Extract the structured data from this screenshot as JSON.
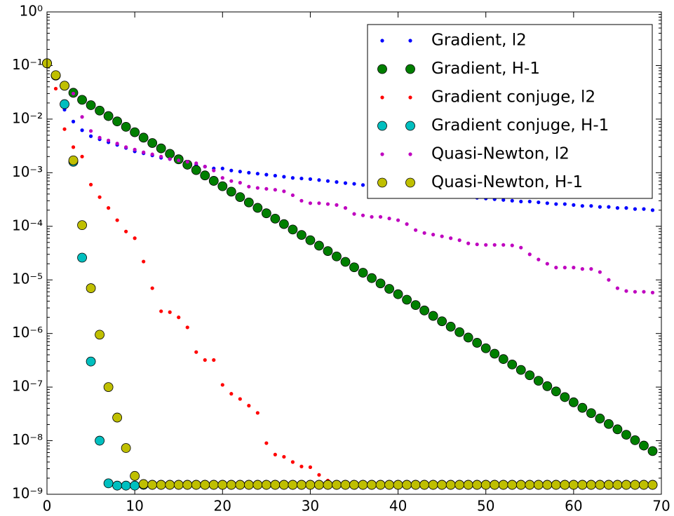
{
  "chart_data": {
    "type": "scatter",
    "yscale": "log",
    "legend": "upper right",
    "x": [
      0,
      1,
      2,
      3,
      4,
      5,
      6,
      7,
      8,
      9,
      10,
      11,
      12,
      13,
      14,
      15,
      16,
      17,
      18,
      19,
      20,
      21,
      22,
      23,
      24,
      25,
      26,
      27,
      28,
      29,
      30,
      31,
      32,
      33,
      34,
      35,
      36,
      37,
      38,
      39,
      40,
      41,
      42,
      43,
      44,
      45,
      46,
      47,
      48,
      49,
      50,
      51,
      52,
      53,
      54,
      55,
      56,
      57,
      58,
      59,
      60,
      61,
      62,
      63,
      64,
      65,
      66,
      67,
      68,
      69
    ],
    "xlim": [
      0,
      70
    ],
    "xticks": [
      0,
      10,
      20,
      30,
      40,
      50,
      60,
      70
    ],
    "ylim": [
      1e-09,
      1
    ],
    "yticks": [
      {
        "value": 1,
        "label": "10⁰"
      },
      {
        "value": 0.1,
        "label": "10⁻¹"
      },
      {
        "value": 0.01,
        "label": "10⁻²"
      },
      {
        "value": 0.001,
        "label": "10⁻³"
      },
      {
        "value": 0.0001,
        "label": "10⁻⁴"
      },
      {
        "value": 1e-05,
        "label": "10⁻⁵"
      },
      {
        "value": 1e-06,
        "label": "10⁻⁶"
      },
      {
        "value": 1e-07,
        "label": "10⁻⁷"
      },
      {
        "value": 1e-08,
        "label": "10⁻⁸"
      },
      {
        "value": 1e-09,
        "label": "10⁻⁹"
      }
    ],
    "series": [
      {
        "name": "Gradient, l2",
        "color": "#0000ff",
        "marker": "dot",
        "values": [
          0.11,
          0.06,
          0.015,
          0.009,
          0.0062,
          0.0048,
          0.0042,
          0.0037,
          0.0033,
          0.0029,
          0.0025,
          0.0023,
          0.0021,
          0.0019,
          0.0018,
          0.0017,
          0.0015,
          0.0014,
          0.0013,
          0.0012,
          0.0012,
          0.0011,
          0.00105,
          0.001,
          0.00096,
          0.00092,
          0.00088,
          0.00084,
          0.0008,
          0.00078,
          0.00076,
          0.00073,
          0.0007,
          0.00067,
          0.00064,
          0.00062,
          0.00059,
          0.00057,
          0.00054,
          0.00052,
          0.0005,
          0.00048,
          0.00046,
          0.00044,
          0.00042,
          0.0004,
          0.00039,
          0.00037,
          0.00036,
          0.00034,
          0.00033,
          0.00032,
          0.00031,
          0.0003,
          0.00029,
          0.00029,
          0.00028,
          0.00027,
          0.00026,
          0.00026,
          0.00025,
          0.00024,
          0.00024,
          0.00023,
          0.00023,
          0.00022,
          0.00022,
          0.00021,
          0.00021,
          0.0002
        ]
      },
      {
        "name": "Gradient, H-1",
        "color": "#007f00",
        "marker": "circle",
        "values": [
          0.11,
          0.065,
          0.042,
          0.031,
          0.0229,
          0.0182,
          0.0144,
          0.0114,
          0.00906,
          0.00718,
          0.00569,
          0.00451,
          0.00358,
          0.00284,
          0.00225,
          0.00178,
          0.00141,
          0.00112,
          0.00089,
          0.000705,
          0.000559,
          0.000443,
          0.000351,
          0.000279,
          0.000221,
          0.000175,
          0.000139,
          0.00011,
          8.7e-05,
          6.9e-05,
          5.5e-05,
          4.35e-05,
          3.45e-05,
          2.74e-05,
          2.17e-05,
          1.72e-05,
          1.36e-05,
          1.08e-05,
          8.6e-06,
          6.8e-06,
          5.4e-06,
          4.27e-06,
          3.39e-06,
          2.69e-06,
          2.13e-06,
          1.69e-06,
          1.34e-06,
          1.06e-06,
          8.4e-07,
          6.7e-07,
          5.3e-07,
          4.2e-07,
          3.33e-07,
          2.64e-07,
          2.09e-07,
          1.66e-07,
          1.31e-07,
          1.04e-07,
          8.3e-08,
          6.5e-08,
          5.2e-08,
          4.1e-08,
          3.27e-08,
          2.59e-08,
          2.05e-08,
          1.63e-08,
          1.29e-08,
          1.02e-08,
          8.1e-09,
          6.4e-09
        ]
      },
      {
        "name": "Gradient conjuge, l2",
        "color": "#ff0000",
        "marker": "dot",
        "values": [
          0.1,
          0.037,
          0.0065,
          0.003,
          0.002,
          0.0006,
          0.00035,
          0.00022,
          0.00013,
          8e-05,
          6e-05,
          2.2e-05,
          7e-06,
          2.6e-06,
          2.5e-06,
          2e-06,
          1.3e-06,
          4.5e-07,
          3.2e-07,
          3.2e-07,
          1.1e-07,
          7.5e-08,
          6e-08,
          4.5e-08,
          3.3e-08,
          9e-09,
          5.5e-09,
          5e-09,
          4e-09,
          3.3e-09,
          3.2e-09,
          2.3e-09,
          1.8e-09,
          1.6e-09,
          1.5e-09,
          1.5e-09,
          1.5e-09,
          1.5e-09,
          1.5e-09,
          1.5e-09,
          1.5e-09,
          1.5e-09,
          1.5e-09,
          1.5e-09,
          1.5e-09,
          1.5e-09,
          1.5e-09,
          1.5e-09,
          1.5e-09,
          1.5e-09,
          1.5e-09,
          1.5e-09,
          1.5e-09,
          1.5e-09,
          1.5e-09,
          1.5e-09,
          1.5e-09,
          1.5e-09,
          1.5e-09,
          1.5e-09,
          1.5e-09,
          1.5e-09,
          1.5e-09,
          1.5e-09,
          1.5e-09,
          1.5e-09,
          1.5e-09,
          1.5e-09,
          1.5e-09,
          1.5e-09
        ]
      },
      {
        "name": "Gradient conjuge, H-1",
        "color": "#00bfbf",
        "marker": "circle",
        "values": [
          0.11,
          0.065,
          0.019,
          0.0016,
          2.6e-05,
          3e-07,
          1e-08,
          1.6e-09,
          1.45e-09,
          1.45e-09,
          1.45e-09,
          1.5e-09,
          1.5e-09,
          1.5e-09,
          1.5e-09,
          1.5e-09,
          1.5e-09,
          1.5e-09,
          1.5e-09,
          1.5e-09,
          1.5e-09,
          1.5e-09,
          1.5e-09,
          1.5e-09,
          1.5e-09,
          1.5e-09,
          1.5e-09,
          1.5e-09,
          1.5e-09,
          1.5e-09,
          1.5e-09,
          1.5e-09,
          1.5e-09,
          1.5e-09,
          1.5e-09,
          1.5e-09,
          1.5e-09,
          1.5e-09,
          1.5e-09,
          1.5e-09,
          1.5e-09,
          1.5e-09,
          1.5e-09,
          1.5e-09,
          1.5e-09,
          1.5e-09,
          1.5e-09,
          1.5e-09,
          1.5e-09,
          1.5e-09,
          1.5e-09,
          1.5e-09,
          1.5e-09,
          1.5e-09,
          1.5e-09,
          1.5e-09,
          1.5e-09,
          1.5e-09,
          1.5e-09,
          1.5e-09,
          1.5e-09,
          1.5e-09,
          1.5e-09,
          1.5e-09,
          1.5e-09,
          1.5e-09,
          1.5e-09,
          1.5e-09,
          1.5e-09,
          1.5e-09
        ]
      },
      {
        "name": "Quasi-Newton, l2",
        "color": "#bf00bf",
        "marker": "dot",
        "values": [
          0.11,
          0.06,
          0.04,
          0.03,
          0.011,
          0.006,
          0.0045,
          0.004,
          0.0035,
          0.003,
          0.0027,
          0.0024,
          0.0022,
          0.002,
          0.0018,
          0.0017,
          0.0016,
          0.0015,
          0.0013,
          0.0011,
          0.0008,
          0.0007,
          0.00065,
          0.00055,
          0.00052,
          0.0005,
          0.00048,
          0.00045,
          0.00038,
          0.0003,
          0.00027,
          0.00027,
          0.00026,
          0.00025,
          0.00022,
          0.00017,
          0.00016,
          0.00015,
          0.00015,
          0.00014,
          0.00013,
          0.00011,
          8.5e-05,
          7.5e-05,
          7e-05,
          6.5e-05,
          6e-05,
          5.5e-05,
          4.8e-05,
          4.6e-05,
          4.5e-05,
          4.5e-05,
          4.5e-05,
          4.4e-05,
          4e-05,
          3e-05,
          2.4e-05,
          2e-05,
          1.7e-05,
          1.7e-05,
          1.7e-05,
          1.6e-05,
          1.6e-05,
          1.4e-05,
          1e-05,
          7e-06,
          6.2e-06,
          6e-06,
          6e-06,
          5.8e-06
        ]
      },
      {
        "name": "Quasi-Newton, H-1",
        "color": "#bfbf00",
        "marker": "circle",
        "values": [
          0.11,
          0.066,
          0.042,
          0.0017,
          0.000105,
          7e-06,
          9.5e-07,
          1e-07,
          2.7e-08,
          7.3e-09,
          2.2e-09,
          1.55e-09,
          1.5e-09,
          1.5e-09,
          1.5e-09,
          1.5e-09,
          1.5e-09,
          1.5e-09,
          1.5e-09,
          1.5e-09,
          1.5e-09,
          1.5e-09,
          1.5e-09,
          1.5e-09,
          1.5e-09,
          1.5e-09,
          1.5e-09,
          1.5e-09,
          1.5e-09,
          1.5e-09,
          1.5e-09,
          1.5e-09,
          1.5e-09,
          1.5e-09,
          1.5e-09,
          1.5e-09,
          1.5e-09,
          1.5e-09,
          1.5e-09,
          1.5e-09,
          1.5e-09,
          1.5e-09,
          1.5e-09,
          1.5e-09,
          1.5e-09,
          1.5e-09,
          1.5e-09,
          1.5e-09,
          1.5e-09,
          1.5e-09,
          1.5e-09,
          1.5e-09,
          1.5e-09,
          1.5e-09,
          1.5e-09,
          1.5e-09,
          1.5e-09,
          1.5e-09,
          1.5e-09,
          1.5e-09,
          1.5e-09,
          1.5e-09,
          1.5e-09,
          1.5e-09,
          1.5e-09,
          1.5e-09,
          1.5e-09,
          1.5e-09,
          1.5e-09,
          1.5e-09
        ]
      }
    ]
  }
}
